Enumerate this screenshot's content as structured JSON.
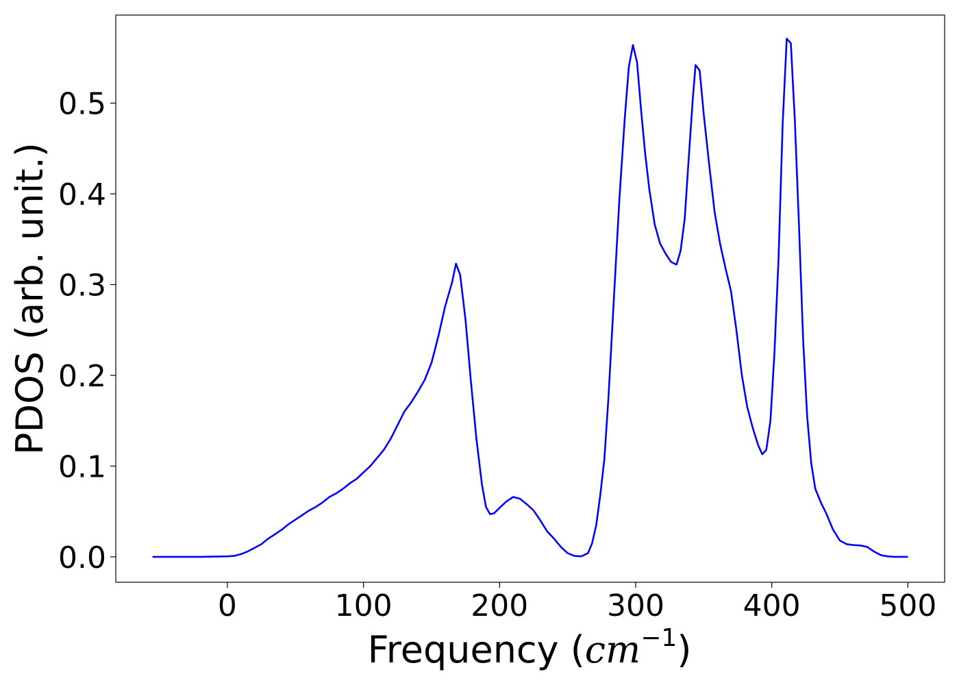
{
  "chart_data": {
    "type": "line",
    "title": "",
    "xlabel": "Frequency (cm−1)",
    "xlabel_parts": {
      "prefix": "Frequency (",
      "math": "cm",
      "sup": "−1",
      "suffix": ")"
    },
    "ylabel": "PDOS (arb. unit.)",
    "xlim": [
      -82,
      527
    ],
    "ylim": [
      -0.028,
      0.597
    ],
    "x_ticks": [
      0,
      100,
      200,
      300,
      400,
      500
    ],
    "x_tick_labels": [
      "0",
      "100",
      "200",
      "300",
      "400",
      "500"
    ],
    "y_ticks": [
      0.0,
      0.1,
      0.2,
      0.3,
      0.4,
      0.5
    ],
    "y_tick_labels": [
      "0.0",
      "0.1",
      "0.2",
      "0.3",
      "0.4",
      "0.5"
    ],
    "grid": false,
    "legend": "none",
    "series": [
      {
        "color": "#0000ff",
        "points": [
          [
            -55,
            0.0
          ],
          [
            -20,
            0.0
          ],
          [
            0,
            0.0005
          ],
          [
            5,
            0.001
          ],
          [
            10,
            0.003
          ],
          [
            15,
            0.006
          ],
          [
            20,
            0.01
          ],
          [
            25,
            0.014
          ],
          [
            30,
            0.02
          ],
          [
            35,
            0.025
          ],
          [
            40,
            0.03
          ],
          [
            45,
            0.036
          ],
          [
            50,
            0.041
          ],
          [
            55,
            0.046
          ],
          [
            60,
            0.051
          ],
          [
            65,
            0.055
          ],
          [
            70,
            0.06
          ],
          [
            75,
            0.066
          ],
          [
            80,
            0.07
          ],
          [
            85,
            0.075
          ],
          [
            90,
            0.081
          ],
          [
            95,
            0.086
          ],
          [
            100,
            0.093
          ],
          [
            105,
            0.1
          ],
          [
            110,
            0.109
          ],
          [
            115,
            0.118
          ],
          [
            120,
            0.13
          ],
          [
            125,
            0.145
          ],
          [
            130,
            0.16
          ],
          [
            135,
            0.17
          ],
          [
            140,
            0.182
          ],
          [
            145,
            0.195
          ],
          [
            150,
            0.214
          ],
          [
            155,
            0.243
          ],
          [
            160,
            0.276
          ],
          [
            165,
            0.302
          ],
          [
            168,
            0.323
          ],
          [
            171,
            0.311
          ],
          [
            175,
            0.261
          ],
          [
            179,
            0.192
          ],
          [
            183,
            0.13
          ],
          [
            187,
            0.08
          ],
          [
            190,
            0.055
          ],
          [
            193,
            0.047
          ],
          [
            196,
            0.048
          ],
          [
            200,
            0.054
          ],
          [
            205,
            0.061
          ],
          [
            210,
            0.066
          ],
          [
            215,
            0.064
          ],
          [
            220,
            0.058
          ],
          [
            225,
            0.051
          ],
          [
            230,
            0.04
          ],
          [
            235,
            0.028
          ],
          [
            240,
            0.02
          ],
          [
            245,
            0.011
          ],
          [
            250,
            0.004
          ],
          [
            255,
            0.001
          ],
          [
            260,
            0.0005
          ],
          [
            265,
            0.004
          ],
          [
            268,
            0.015
          ],
          [
            271,
            0.035
          ],
          [
            274,
            0.068
          ],
          [
            277,
            0.108
          ],
          [
            280,
            0.175
          ],
          [
            284,
            0.285
          ],
          [
            288,
            0.393
          ],
          [
            292,
            0.484
          ],
          [
            295,
            0.54
          ],
          [
            298,
            0.564
          ],
          [
            301,
            0.545
          ],
          [
            304,
            0.492
          ],
          [
            307,
            0.444
          ],
          [
            310,
            0.405
          ],
          [
            314,
            0.366
          ],
          [
            318,
            0.345
          ],
          [
            322,
            0.334
          ],
          [
            326,
            0.325
          ],
          [
            330,
            0.322
          ],
          [
            333,
            0.337
          ],
          [
            336,
            0.372
          ],
          [
            339,
            0.44
          ],
          [
            342,
            0.505
          ],
          [
            344,
            0.542
          ],
          [
            347,
            0.536
          ],
          [
            350,
            0.488
          ],
          [
            354,
            0.432
          ],
          [
            358,
            0.38
          ],
          [
            362,
            0.345
          ],
          [
            366,
            0.318
          ],
          [
            370,
            0.293
          ],
          [
            374,
            0.25
          ],
          [
            378,
            0.2
          ],
          [
            382,
            0.165
          ],
          [
            386,
            0.142
          ],
          [
            390,
            0.123
          ],
          [
            393,
            0.113
          ],
          [
            396,
            0.118
          ],
          [
            399,
            0.15
          ],
          [
            402,
            0.225
          ],
          [
            405,
            0.33
          ],
          [
            408,
            0.478
          ],
          [
            411,
            0.571
          ],
          [
            414,
            0.566
          ],
          [
            417,
            0.48
          ],
          [
            420,
            0.365
          ],
          [
            423,
            0.24
          ],
          [
            426,
            0.155
          ],
          [
            429,
            0.103
          ],
          [
            432,
            0.075
          ],
          [
            436,
            0.06
          ],
          [
            440,
            0.048
          ],
          [
            445,
            0.03
          ],
          [
            450,
            0.018
          ],
          [
            455,
            0.014
          ],
          [
            460,
            0.013
          ],
          [
            465,
            0.0125
          ],
          [
            470,
            0.011
          ],
          [
            475,
            0.006
          ],
          [
            480,
            0.002
          ],
          [
            485,
            0.0005
          ],
          [
            490,
            0.0
          ],
          [
            500,
            0.0
          ]
        ]
      }
    ]
  }
}
